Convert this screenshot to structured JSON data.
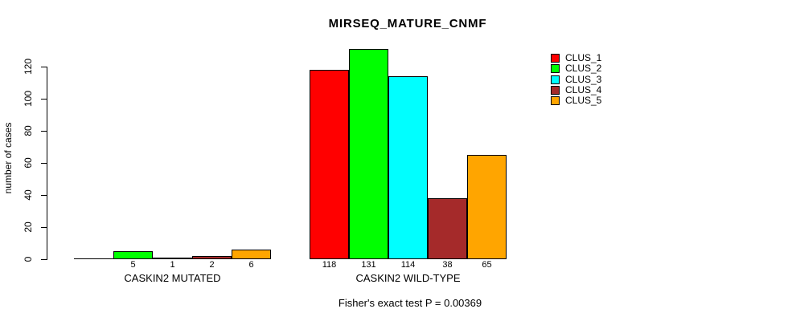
{
  "chart_data": {
    "type": "bar",
    "grouped": true,
    "title": "MIRSEQ_MATURE_CNMF",
    "ylabel": "number of cases",
    "xlabel": "",
    "ylim": [
      0,
      120
    ],
    "y_ticks": [
      0,
      20,
      40,
      60,
      80,
      100,
      120
    ],
    "grid": false,
    "legend_position": "top-right",
    "categories": [
      "CASKIN2 MUTATED",
      "CASKIN2 WILD-TYPE"
    ],
    "series": [
      {
        "name": "CLUS_1",
        "color": "#FF0000",
        "values": [
          0,
          118
        ]
      },
      {
        "name": "CLUS_2",
        "color": "#00FF00",
        "values": [
          5,
          131
        ]
      },
      {
        "name": "CLUS_3",
        "color": "#00FFFF",
        "values": [
          1,
          114
        ]
      },
      {
        "name": "CLUS_4",
        "color": "#A52A2A",
        "values": [
          2,
          38
        ]
      },
      {
        "name": "CLUS_5",
        "color": "#FFA500",
        "values": [
          6,
          65
        ]
      }
    ],
    "bar_value_labels": [
      [
        "",
        "5",
        "1",
        "2",
        "6"
      ],
      [
        "118",
        "131",
        "114",
        "38",
        "65"
      ]
    ],
    "annotation": "Fisher's exact test P = 0.00369"
  },
  "colors": {
    "axis": "#000000",
    "background": "#FFFFFF",
    "bar_border": "#000000"
  }
}
